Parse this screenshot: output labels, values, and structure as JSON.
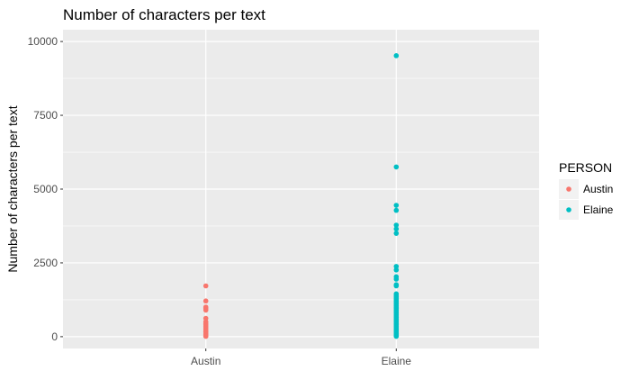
{
  "chart_data": {
    "type": "scatter",
    "title": "Number of characters per text",
    "xlabel": "",
    "ylabel": "Number of characters per text",
    "categories": [
      "Austin",
      "Elaine"
    ],
    "ylim": [
      -400,
      10400
    ],
    "y_ticks": [
      0,
      2500,
      5000,
      7500,
      10000
    ],
    "grid": true,
    "legend": {
      "title": "PERSON",
      "position": "right"
    },
    "series": [
      {
        "name": "Austin",
        "color": "#F8766D",
        "x": "Austin",
        "values": [
          1720,
          1210,
          1000,
          950,
          900,
          620,
          510,
          450,
          400,
          350,
          300,
          250,
          200,
          160,
          120,
          80,
          50,
          20,
          10
        ]
      },
      {
        "name": "Elaine",
        "color": "#00BFC4",
        "x": "Elaine",
        "values": [
          9520,
          5750,
          4450,
          4280,
          3780,
          3650,
          3500,
          2380,
          2260,
          2030,
          1950,
          1760,
          1720,
          1450,
          1400,
          1350,
          1300,
          1250,
          1200,
          1150,
          1100,
          1050,
          1000,
          950,
          900,
          850,
          800,
          750,
          700,
          650,
          600,
          550,
          500,
          450,
          400,
          350,
          300,
          250,
          200,
          150,
          100,
          60,
          30,
          10
        ]
      }
    ]
  }
}
